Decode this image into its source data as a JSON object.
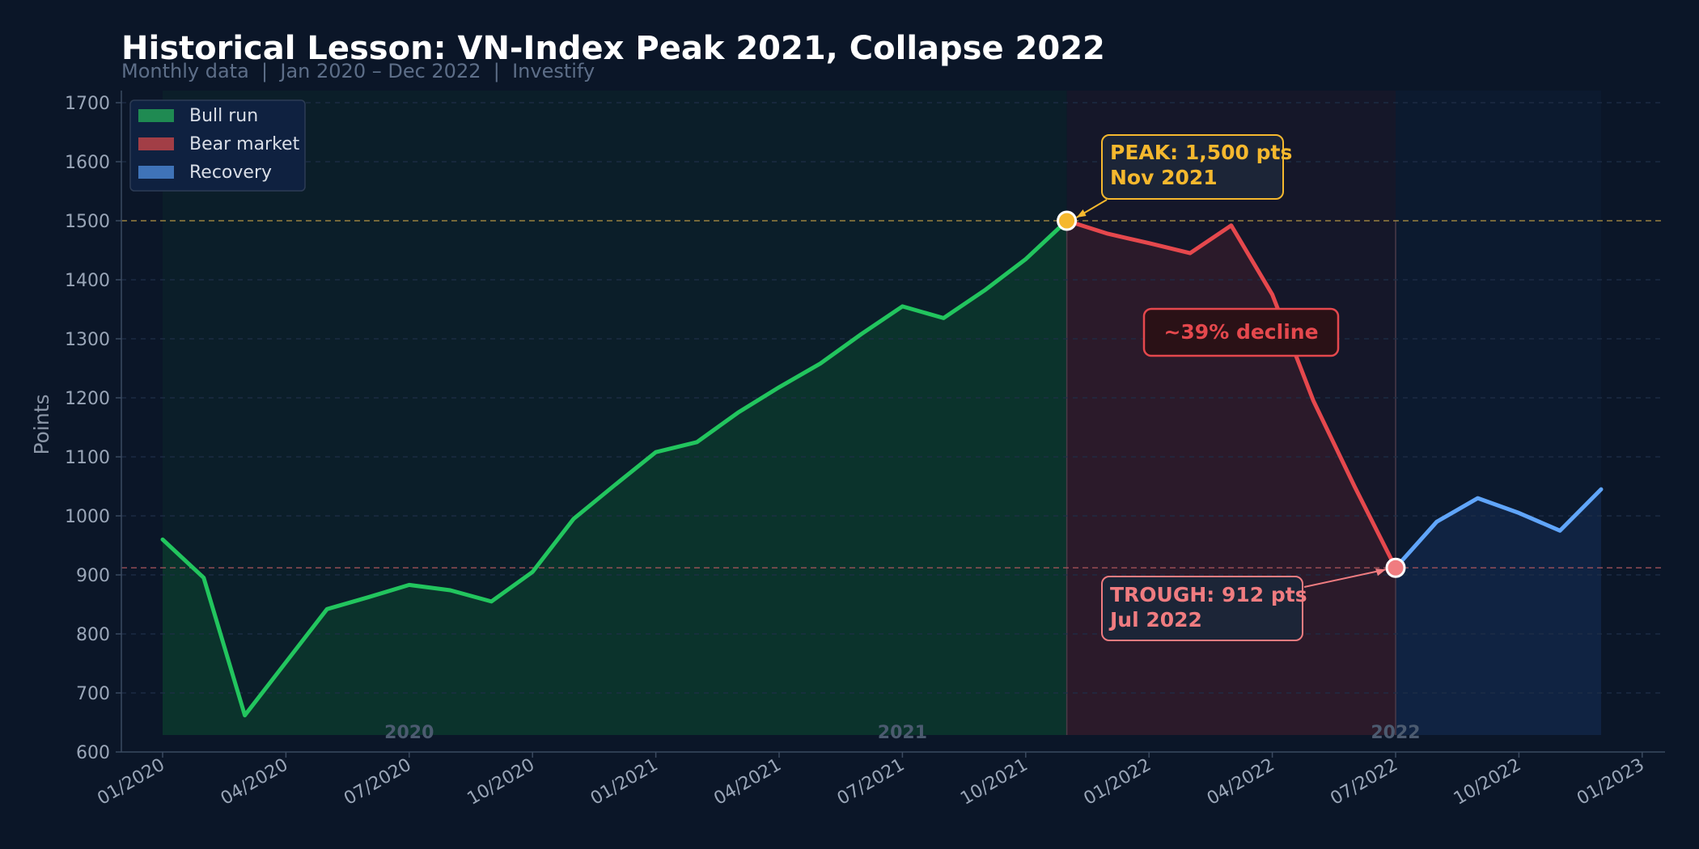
{
  "chart_data": {
    "type": "line",
    "title": "Historical Lesson: VN-Index Peak 2021, Collapse 2022",
    "subtitle": "Monthly data  |  Jan 2020 – Dec 2022  |  Investify",
    "ylabel": "Points",
    "xlabel": "",
    "ylim": [
      600,
      1700
    ],
    "yticks": [
      600,
      700,
      800,
      900,
      1000,
      1100,
      1200,
      1300,
      1400,
      1500,
      1600,
      1700
    ],
    "xticks": [
      "01/2020",
      "04/2020",
      "07/2020",
      "10/2020",
      "01/2021",
      "04/2021",
      "07/2021",
      "10/2021",
      "01/2022",
      "04/2022",
      "07/2022",
      "10/2022",
      "01/2023"
    ],
    "year_labels": [
      {
        "text": "2020",
        "month": 6
      },
      {
        "text": "2021",
        "month": 18
      },
      {
        "text": "2022",
        "month": 30
      }
    ],
    "grid": true,
    "legend_position": "top-left",
    "series": [
      {
        "name": "Bull run",
        "color": "#22c55e",
        "months": [
          0,
          1,
          2,
          3,
          4,
          5,
          6,
          7,
          8,
          9,
          10,
          11,
          12,
          13,
          14,
          15,
          16,
          17,
          18,
          19,
          20,
          21,
          22
        ],
        "values": [
          960,
          895,
          662,
          752,
          842,
          862,
          883,
          874,
          855,
          905,
          995,
          1052,
          1108,
          1125,
          1175,
          1218,
          1258,
          1308,
          1355,
          1335,
          1382,
          1435,
          1500
        ]
      },
      {
        "name": "Bear market",
        "color": "#e5484d",
        "months": [
          22,
          23,
          24,
          25,
          26,
          27,
          28,
          29,
          30
        ],
        "values": [
          1500,
          1478,
          1462,
          1445,
          1492,
          1375,
          1195,
          1050,
          912
        ]
      },
      {
        "name": "Recovery",
        "color": "#60a5fa",
        "months": [
          30,
          31,
          32,
          33,
          34,
          35
        ],
        "values": [
          912,
          990,
          1030,
          1005,
          975,
          1045
        ]
      }
    ],
    "reference_lines": [
      {
        "value": 1500,
        "color": "#b8963e"
      },
      {
        "value": 912,
        "color": "#b0585e"
      }
    ],
    "annotations": {
      "peak": {
        "lines": [
          "PEAK: 1,500 pts",
          "Nov 2021"
        ],
        "month": 22,
        "value": 1500,
        "color": "#f5b82e"
      },
      "trough": {
        "lines": [
          "TROUGH: 912 pts",
          "Jul 2022"
        ],
        "month": 30,
        "value": 912,
        "color": "#f07c80"
      },
      "decline": {
        "text": "~39% decline",
        "color": "#e5484d"
      }
    },
    "legend": [
      {
        "label": "Bull run",
        "color": "#1f8a52"
      },
      {
        "label": "Bear market",
        "color": "#a23e46"
      },
      {
        "label": "Recovery",
        "color": "#3f73b8"
      }
    ]
  }
}
